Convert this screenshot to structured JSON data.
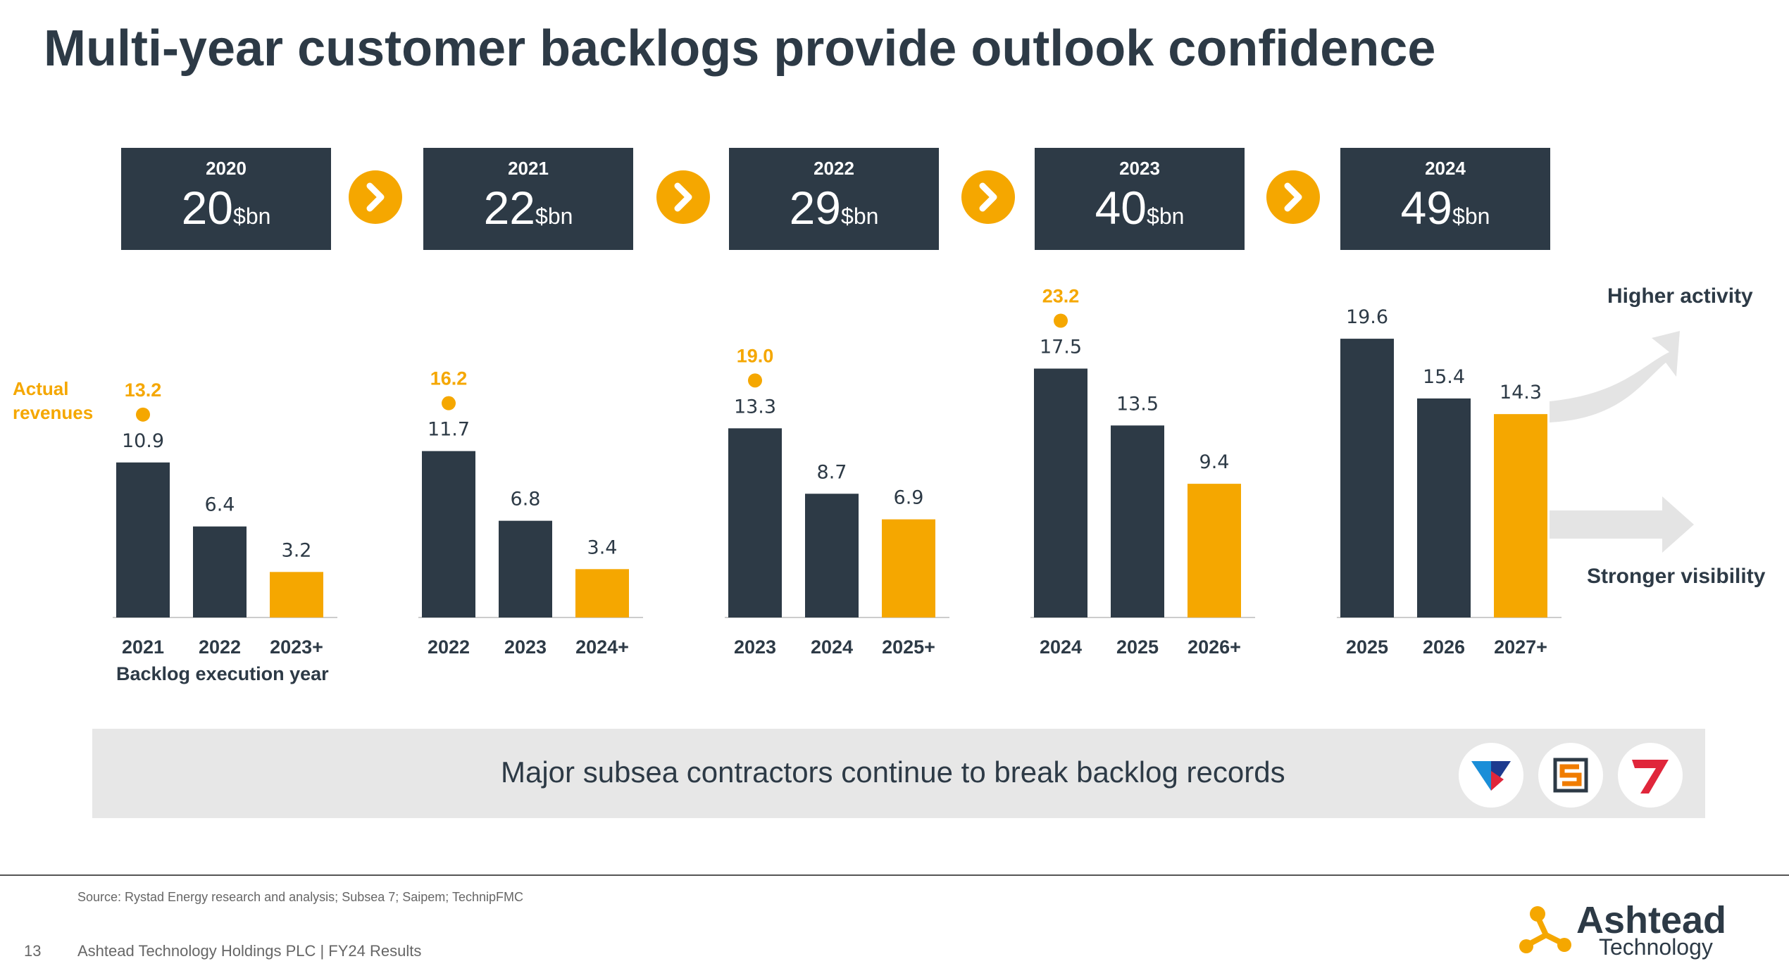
{
  "title": "Multi-year customer backlogs provide outlook confidence",
  "backlog_totals": [
    {
      "year": "2020",
      "value": "20",
      "unit": "$bn"
    },
    {
      "year": "2021",
      "value": "22",
      "unit": "$bn"
    },
    {
      "year": "2022",
      "value": "29",
      "unit": "$bn"
    },
    {
      "year": "2023",
      "value": "40",
      "unit": "$bn"
    },
    {
      "year": "2024",
      "value": "49",
      "unit": "$bn"
    }
  ],
  "labels": {
    "actual_revenues": "Actual revenues",
    "execution_year": "Backlog execution year",
    "higher_activity": "Higher activity",
    "stronger_visibility": "Stronger visibility"
  },
  "banner": {
    "text": "Major subsea contractors continue to break backlog records"
  },
  "footer": {
    "source": "Source: Rystad Energy research and analysis; Subsea 7; Saipem; TechnipFMC",
    "page": "13",
    "text": "Ashtead Technology Holdings PLC | FY24 Results",
    "brand_name": "Ashtead",
    "brand_sub": "Technology"
  },
  "colors": {
    "dark": "#2d3a46",
    "accent": "#f5a700",
    "arrow": "#e4e4e4"
  },
  "chart_data": {
    "type": "bar",
    "ylim": [
      0,
      25
    ],
    "groups": [
      {
        "backlog_year": "2020",
        "categories": [
          "2021",
          "2022",
          "2023+"
        ],
        "values": [
          10.9,
          6.4,
          3.2
        ],
        "highlight_last": true,
        "actual_revenue": 13.2
      },
      {
        "backlog_year": "2021",
        "categories": [
          "2022",
          "2023",
          "2024+"
        ],
        "values": [
          11.7,
          6.8,
          3.4
        ],
        "highlight_last": true,
        "actual_revenue": 16.2
      },
      {
        "backlog_year": "2022",
        "categories": [
          "2023",
          "2024",
          "2025+"
        ],
        "values": [
          13.3,
          8.7,
          6.9
        ],
        "highlight_last": true,
        "actual_revenue": 19.0
      },
      {
        "backlog_year": "2023",
        "categories": [
          "2024",
          "2025",
          "2026+"
        ],
        "values": [
          17.5,
          13.5,
          9.4
        ],
        "highlight_last": true,
        "actual_revenue": 23.2
      },
      {
        "backlog_year": "2024",
        "categories": [
          "2025",
          "2026",
          "2027+"
        ],
        "values": [
          19.6,
          15.4,
          14.3
        ],
        "highlight_last": true,
        "actual_revenue": null
      }
    ]
  }
}
